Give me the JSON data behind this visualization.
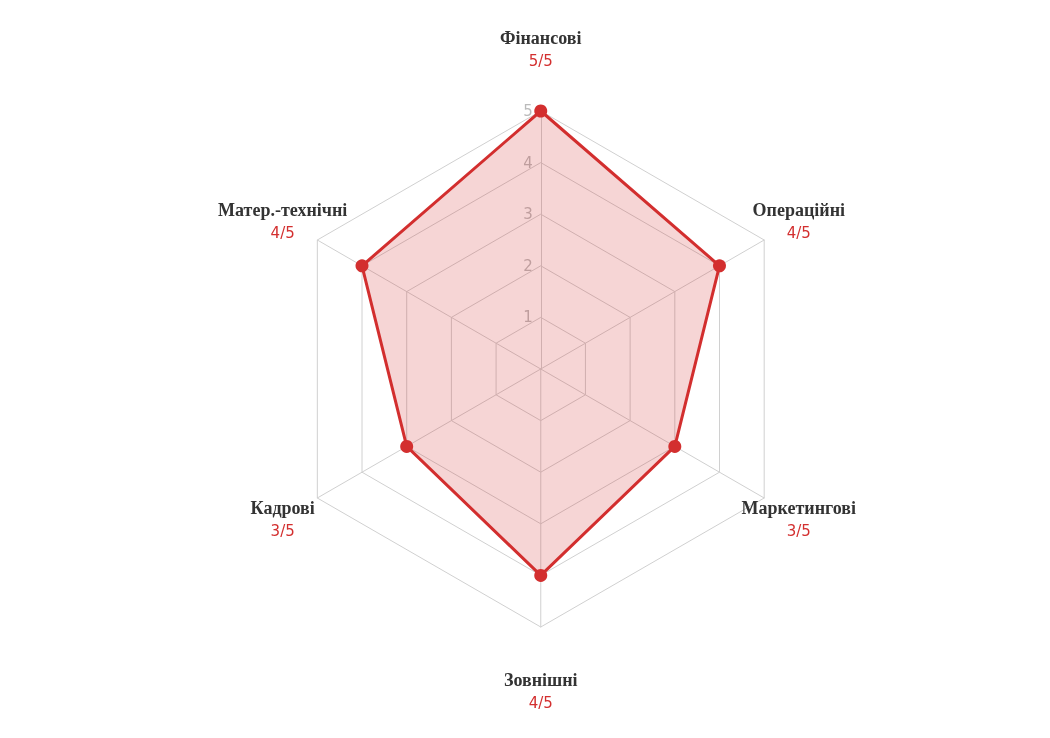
{
  "chart_data": {
    "type": "radar",
    "categories": [
      "Фінансові",
      "Операційні",
      "Маркетингові",
      "Зовнішні",
      "Кадрові",
      "Матер.-технічні"
    ],
    "series": [
      {
        "color": "#d32f2f",
        "values": [
          5,
          4,
          3,
          4,
          3,
          4
        ]
      }
    ],
    "annotations": [
      {
        "text": "5/5",
        "x": "Фінансові"
      },
      {
        "text": "4/5",
        "x": "Операційні"
      },
      {
        "text": "3/5",
        "x": "Маркетингові"
      },
      {
        "text": "4/5",
        "x": "Зовнішні"
      },
      {
        "text": "3/5",
        "x": "Кадрові"
      },
      {
        "text": "4/5",
        "x": "Матер.-технічні"
      }
    ],
    "ylim": [
      0,
      5
    ],
    "yticks": [
      1,
      2,
      3,
      4,
      5
    ],
    "grid": true,
    "marker": "circle",
    "line_style": "solid"
  }
}
